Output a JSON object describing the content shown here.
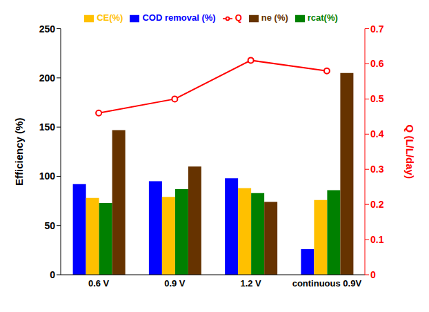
{
  "chart_data": {
    "type": "bar",
    "categories": [
      "0.6 V",
      "0.9 V",
      "1.2 V",
      "continuous 0.9V"
    ],
    "y_label": "Efficiency (%)",
    "y2_label": "Q  (L/L/day)",
    "ylim": [
      0,
      250
    ],
    "yticks": [
      0,
      50,
      100,
      150,
      200,
      250
    ],
    "y2lim": [
      0,
      0.7
    ],
    "y2ticks": [
      0,
      0.1,
      0.2,
      0.3,
      0.4,
      0.5,
      0.6,
      0.7
    ],
    "grid": false,
    "legend": "top",
    "series": [
      {
        "name": "COD removal (%)",
        "color": "#0000FF",
        "values": [
          92,
          95,
          98,
          26
        ]
      },
      {
        "name": "CE(%)",
        "color": "#FFC000",
        "values": [
          78,
          79,
          88,
          76
        ]
      },
      {
        "name": "rcat(%)",
        "color": "#008000",
        "values": [
          73,
          87,
          83,
          86
        ]
      },
      {
        "name": "ne (%)",
        "color": "#663300",
        "values": [
          147,
          110,
          74,
          205
        ]
      },
      {
        "name": "Q",
        "color": "#FF0000",
        "type": "line",
        "marker": "circle",
        "axis": "y2",
        "values": [
          0.46,
          0.5,
          0.61,
          0.58
        ]
      }
    ]
  }
}
